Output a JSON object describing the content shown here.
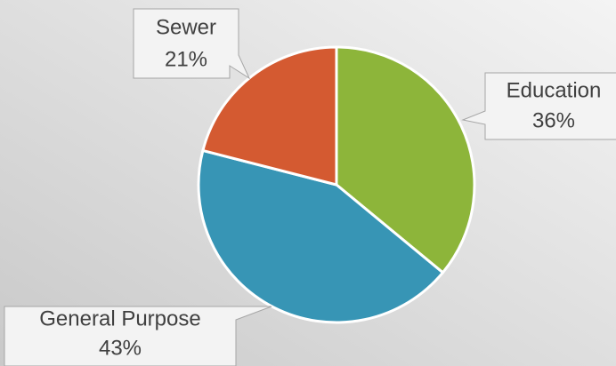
{
  "chart_data": {
    "type": "pie",
    "categories": [
      "Education",
      "General Purpose",
      "Sewer"
    ],
    "values": [
      36,
      43,
      21
    ],
    "value_labels": [
      "36%",
      "43%",
      "21%"
    ],
    "colors": [
      "#8db53a",
      "#3795b5",
      "#d45a31"
    ]
  }
}
